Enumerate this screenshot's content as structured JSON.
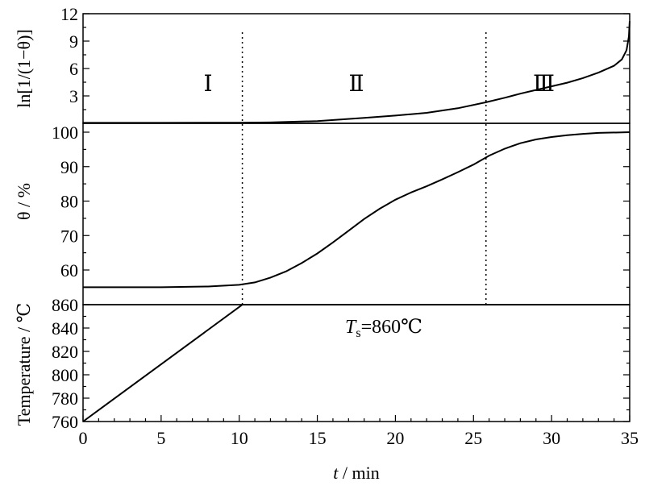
{
  "chart_data": {
    "type": "line",
    "x": {
      "label_italic": "t",
      "label_rest": " / min",
      "range": [
        0,
        35
      ],
      "ticks": [
        0,
        5,
        10,
        15,
        20,
        25,
        30,
        35
      ]
    },
    "panels": [
      {
        "id": "top",
        "ylabel": "ln[1/(1−θ)]",
        "ylim": [
          0,
          12
        ],
        "yticks": [
          3,
          6,
          9,
          12
        ],
        "series": [
          {
            "points": [
              [
                0,
                0.05
              ],
              [
                5,
                0.05
              ],
              [
                10,
                0.07
              ],
              [
                12,
                0.1
              ],
              [
                15,
                0.25
              ],
              [
                18,
                0.6
              ],
              [
                20,
                0.85
              ],
              [
                22,
                1.15
              ],
              [
                24,
                1.65
              ],
              [
                25.8,
                2.3
              ],
              [
                27,
                2.8
              ],
              [
                28,
                3.25
              ],
              [
                29,
                3.65
              ],
              [
                30,
                4.05
              ],
              [
                31,
                4.45
              ],
              [
                32,
                4.95
              ],
              [
                33,
                5.55
              ],
              [
                34,
                6.3
              ],
              [
                34.5,
                7.0
              ],
              [
                34.8,
                8.0
              ],
              [
                34.95,
                9.5
              ],
              [
                35,
                11.2
              ]
            ]
          }
        ]
      },
      {
        "id": "middle",
        "ylabel": "θ / %",
        "ylim": [
          50,
          100
        ],
        "yticks": [
          60,
          70,
          80,
          90,
          100
        ],
        "series": [
          {
            "points": [
              [
                0,
                55.0
              ],
              [
                5,
                55.0
              ],
              [
                8,
                55.2
              ],
              [
                10,
                55.7
              ],
              [
                11,
                56.4
              ],
              [
                12,
                57.8
              ],
              [
                13,
                59.6
              ],
              [
                14,
                62.0
              ],
              [
                15,
                64.8
              ],
              [
                16,
                68.0
              ],
              [
                17,
                71.4
              ],
              [
                18,
                74.8
              ],
              [
                19,
                77.8
              ],
              [
                20,
                80.4
              ],
              [
                21,
                82.5
              ],
              [
                22,
                84.3
              ],
              [
                23,
                86.3
              ],
              [
                24,
                88.4
              ],
              [
                25,
                90.6
              ],
              [
                26,
                93.2
              ],
              [
                27,
                95.2
              ],
              [
                28,
                96.8
              ],
              [
                29,
                97.9
              ],
              [
                30,
                98.6
              ],
              [
                31,
                99.1
              ],
              [
                32,
                99.5
              ],
              [
                33,
                99.8
              ],
              [
                35,
                100
              ]
            ]
          }
        ]
      },
      {
        "id": "bottom",
        "ylabel": "Temperature / ℃",
        "ylim": [
          760,
          860
        ],
        "yticks": [
          760,
          780,
          800,
          820,
          840,
          860
        ],
        "series": [
          {
            "points": [
              [
                0,
                760
              ],
              [
                10.2,
                860
              ],
              [
                35,
                860
              ]
            ]
          }
        ]
      }
    ],
    "vlines_x": [
      10.2,
      25.8
    ],
    "regions": [
      {
        "label": "Ⅰ",
        "x": 8
      },
      {
        "label": "Ⅱ",
        "x": 17.5
      },
      {
        "label": "Ⅲ",
        "x": 29.5
      }
    ],
    "annotation": {
      "main": "T",
      "sub": "s",
      "rest": "=860℃"
    }
  }
}
